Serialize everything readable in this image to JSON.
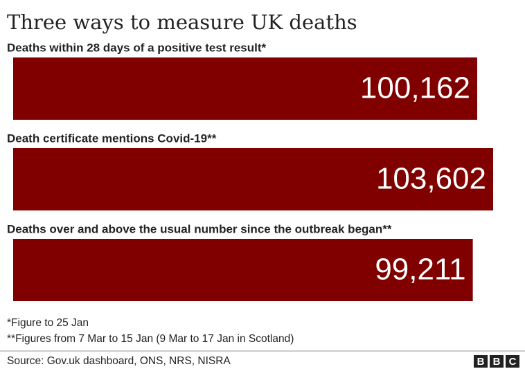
{
  "chart_data": {
    "type": "bar",
    "orientation": "horizontal",
    "title": "Three ways to measure UK deaths",
    "categories": [
      "Deaths within 28 days of a positive test result*",
      "Death certificate mentions Covid-19**",
      "Deaths over and above the usual number since the outbreak began**"
    ],
    "values": [
      100162,
      103602,
      99211
    ],
    "value_labels": [
      "100,162",
      "103,602",
      "99,211"
    ],
    "color": "#800000",
    "notes": [
      "*Figure to 25 Jan",
      "**Figures from 7 Mar to 15 Jan (9 Mar to 17 Jan in Scotland)"
    ],
    "source": "Source: Gov.uk dashboard, ONS, NRS, NISRA",
    "logo": [
      "B",
      "B",
      "C"
    ]
  }
}
